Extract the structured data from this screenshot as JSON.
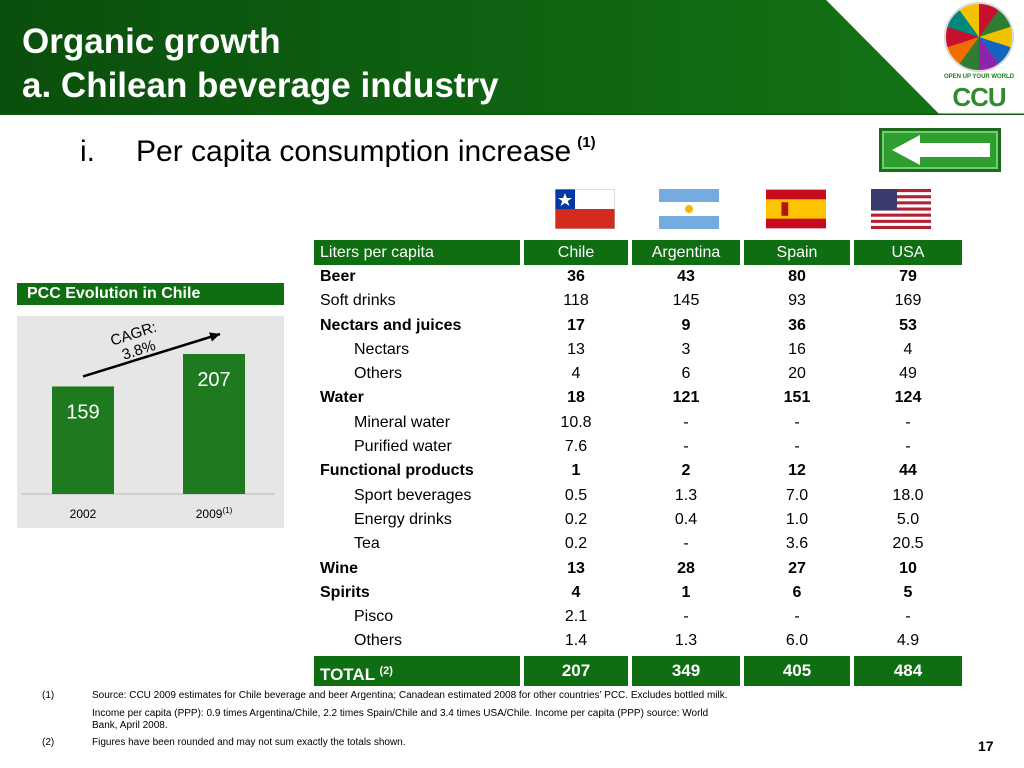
{
  "header": {
    "title_line1": "Organic growth",
    "title_line2": "a. Chilean beverage industry",
    "logo_tagline": "OPEN UP YOUR WORLD",
    "logo_text": "CCU",
    "colors": {
      "dark_green": "#0f6d12",
      "band_green": "#0b5a0d"
    }
  },
  "subtitle": {
    "numeral": "i.",
    "text": "Per capita consumption increase",
    "footnote_ref": "(1)"
  },
  "back_button": {
    "icon": "left-arrow-icon"
  },
  "flags": [
    "chile-flag",
    "argentina-flag",
    "spain-flag",
    "usa-flag"
  ],
  "chart_data": {
    "type": "bar",
    "title": "PCC Evolution in Chile",
    "categories": [
      "2002",
      "2009"
    ],
    "category_footnote": "(1)",
    "values": [
      159,
      207
    ],
    "annotation": "CAGR: 3.8%",
    "bar_color": "#1f7a1f"
  },
  "table": {
    "headers": [
      "Liters per capita",
      "Chile",
      "Argentina",
      "Spain",
      "USA"
    ],
    "rows": [
      {
        "label": "Beer",
        "level": 0,
        "bold": true,
        "values": [
          "36",
          "43",
          "80",
          "79"
        ]
      },
      {
        "label": "Soft drinks",
        "level": 0,
        "bold": false,
        "values": [
          "118",
          "145",
          "93",
          "169"
        ]
      },
      {
        "label": "Nectars and juices",
        "level": 0,
        "bold": true,
        "values": [
          "17",
          "9",
          "36",
          "53"
        ]
      },
      {
        "label": "Nectars",
        "level": 1,
        "bold": false,
        "values": [
          "13",
          "3",
          "16",
          "4"
        ]
      },
      {
        "label": "Others",
        "level": 1,
        "bold": false,
        "values": [
          "4",
          "6",
          "20",
          "49"
        ]
      },
      {
        "label": "Water",
        "level": 0,
        "bold": true,
        "values": [
          "18",
          "121",
          "151",
          "124"
        ]
      },
      {
        "label": "Mineral water",
        "level": 1,
        "bold": false,
        "values": [
          "10.8",
          "-",
          "-",
          "-"
        ]
      },
      {
        "label": "Purified water",
        "level": 1,
        "bold": false,
        "values": [
          "7.6",
          "-",
          "-",
          "-"
        ]
      },
      {
        "label": "Functional products",
        "level": 0,
        "bold": true,
        "values": [
          "1",
          "2",
          "12",
          "44"
        ]
      },
      {
        "label": "Sport beverages",
        "level": 1,
        "bold": false,
        "values": [
          "0.5",
          "1.3",
          "7.0",
          "18.0"
        ]
      },
      {
        "label": "Energy drinks",
        "level": 1,
        "bold": false,
        "values": [
          "0.2",
          "0.4",
          "1.0",
          "5.0"
        ]
      },
      {
        "label": "Tea",
        "level": 1,
        "bold": false,
        "values": [
          "0.2",
          "-",
          "3.6",
          "20.5"
        ]
      },
      {
        "label": "Wine",
        "level": 0,
        "bold": true,
        "values": [
          "13",
          "28",
          "27",
          "10"
        ]
      },
      {
        "label": "Spirits",
        "level": 0,
        "bold": true,
        "values": [
          "4",
          "1",
          "6",
          "5"
        ]
      },
      {
        "label": "Pisco",
        "level": 1,
        "bold": false,
        "values": [
          "2.1",
          "-",
          "-",
          "-"
        ]
      },
      {
        "label": "Others",
        "level": 1,
        "bold": false,
        "values": [
          "1.4",
          "1.3",
          "6.0",
          "4.9"
        ]
      }
    ],
    "total": {
      "label": "TOTAL",
      "footnote_ref": "(2)",
      "values": [
        "207",
        "349",
        "405",
        "484"
      ]
    }
  },
  "footnotes": [
    {
      "mark": "(1)",
      "text": "Source: CCU 2009 estimates for Chile beverage and beer Argentina; Canadean estimated 2008 for other countries’ PCC. Excludes bottled milk."
    },
    {
      "mark": "",
      "text": "Income per capita (PPP): 0.9 times Argentina/Chile, 2.2 times Spain/Chile and 3.4 times USA/Chile. Income per capita (PPP) source: World"
    },
    {
      "mark": "",
      "text": "Bank, April 2008."
    },
    {
      "mark": "(2)",
      "text": "Figures have been rounded and may not sum exactly the totals shown."
    }
  ],
  "page_number": "17"
}
